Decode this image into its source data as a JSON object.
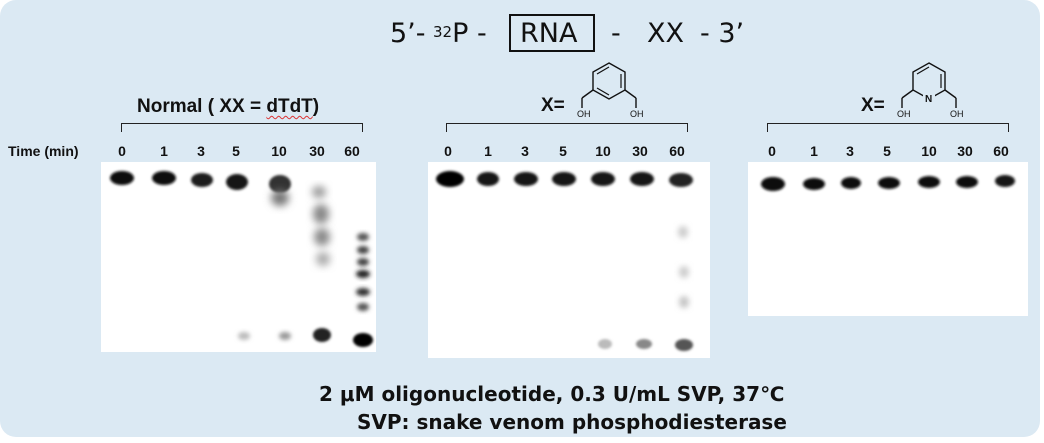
{
  "construct": {
    "prefix": "5’-",
    "isotope_mass": "32",
    "isotope_symbol": "P -",
    "rna_label": "RNA",
    "dash": "-",
    "xx_label": "XX",
    "suffix": "- 3’"
  },
  "time_axis_label": "Time (min)",
  "panels": [
    {
      "label_prefix": "Normal ( XX = ",
      "label_squiggle": "dTdT",
      "label_suffix": ")",
      "times": [
        "0",
        "1",
        "3",
        "5",
        "10",
        "30",
        "60"
      ]
    },
    {
      "label": "X=",
      "oh_left": "OH",
      "oh_right": "OH",
      "times": [
        "0",
        "1",
        "3",
        "5",
        "10",
        "30",
        "60"
      ]
    },
    {
      "label": "X=",
      "ring_atom": "N",
      "oh_left": "OH",
      "oh_right": "OH",
      "times": [
        "0",
        "1",
        "3",
        "5",
        "10",
        "30",
        "60"
      ]
    }
  ],
  "footer": {
    "line1": "2 μM oligonucleotide, 0.3 U/mL SVP, 37℃",
    "line2": "SVP:  snake venom phosphodiesterase"
  }
}
